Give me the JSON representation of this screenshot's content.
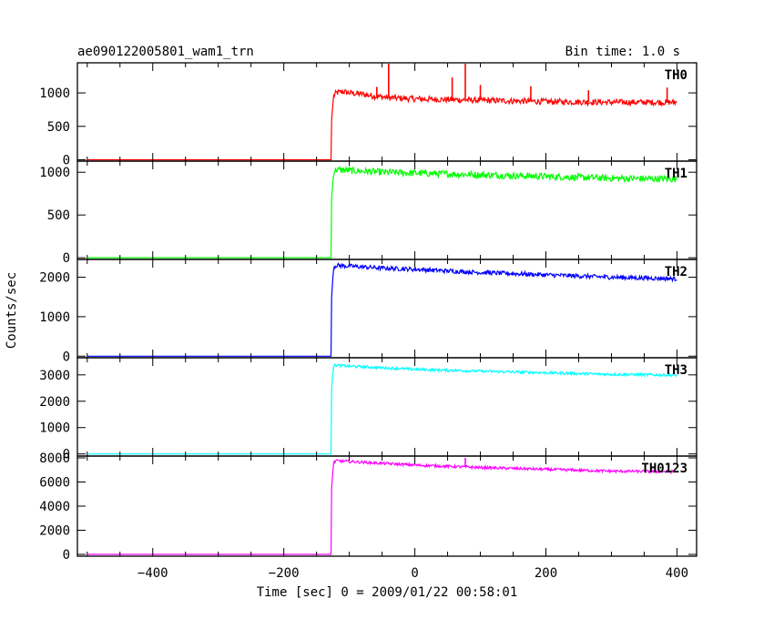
{
  "chart_data": {
    "type": "line",
    "title": "ae090122005801_wam1_trn",
    "subtitle": "Bin time: 1.0 s",
    "xlabel": "Time [sec] 0 = 2009/01/22 00:58:01",
    "ylabel": "Counts/sec",
    "xlim": [
      -515,
      430
    ],
    "xticks": [
      -400,
      -200,
      0,
      200,
      400
    ],
    "x_tick_labels": [
      "−400",
      "−200",
      "0",
      "200",
      "400"
    ],
    "series": [
      {
        "name": "TH0",
        "color": "#ff0000",
        "ylim": [
          -20,
          1450
        ],
        "yticks": [
          0,
          500,
          1000
        ],
        "x": [
          -500,
          -128,
          -127,
          -124,
          -120,
          -110,
          -100,
          -80,
          -60,
          -40,
          -20,
          0,
          50,
          100,
          150,
          200,
          250,
          300,
          350,
          400
        ],
        "values": [
          0,
          0,
          600,
          950,
          1000,
          1020,
          1000,
          980,
          950,
          930,
          920,
          910,
          900,
          890,
          880,
          870,
          865,
          860,
          860,
          860
        ],
        "spikes": [
          {
            "x": -40,
            "y": 1450
          },
          {
            "x": 77,
            "y": 1450
          },
          {
            "x": 57,
            "y": 1230
          },
          {
            "x": 100,
            "y": 1120
          },
          {
            "x": -58,
            "y": 1090
          },
          {
            "x": 177,
            "y": 1100
          },
          {
            "x": 265,
            "y": 1040
          },
          {
            "x": 385,
            "y": 1080
          }
        ],
        "noise": 45
      },
      {
        "name": "TH1",
        "color": "#00ff00",
        "ylim": [
          -20,
          1130
        ],
        "yticks": [
          0,
          500,
          1000
        ],
        "x": [
          -500,
          -128,
          -127,
          -124,
          -120,
          -100,
          -50,
          0,
          100,
          200,
          300,
          400
        ],
        "values": [
          0,
          0,
          700,
          1000,
          1030,
          1020,
          1000,
          990,
          970,
          950,
          930,
          920
        ],
        "noise": 40
      },
      {
        "name": "TH2",
        "color": "#0000ff",
        "ylim": [
          -40,
          2450
        ],
        "yticks": [
          0,
          1000,
          2000
        ],
        "x": [
          -500,
          -128,
          -127,
          -124,
          -120,
          -100,
          -50,
          0,
          100,
          200,
          300,
          400
        ],
        "values": [
          0,
          0,
          1500,
          2250,
          2300,
          2280,
          2230,
          2200,
          2120,
          2060,
          2000,
          1960
        ],
        "noise": 55
      },
      {
        "name": "TH3",
        "color": "#00ffff",
        "ylim": [
          -80,
          3650
        ],
        "yticks": [
          0,
          1000,
          2000,
          3000
        ],
        "x": [
          -500,
          -128,
          -127,
          -124,
          -120,
          -100,
          -50,
          0,
          100,
          200,
          300,
          400
        ],
        "values": [
          0,
          0,
          2500,
          3350,
          3370,
          3330,
          3270,
          3210,
          3140,
          3080,
          3020,
          2990
        ],
        "noise": 50
      },
      {
        "name": "TH0123",
        "color": "#ff00ff",
        "ylim": [
          -150,
          8150
        ],
        "yticks": [
          0,
          2000,
          4000,
          6000,
          8000
        ],
        "x": [
          -500,
          -128,
          -127,
          -124,
          -120,
          -100,
          -50,
          0,
          100,
          200,
          300,
          400
        ],
        "values": [
          0,
          0,
          5500,
          7600,
          7750,
          7700,
          7550,
          7400,
          7200,
          7050,
          6900,
          6850
        ],
        "spikes": [
          {
            "x": 77,
            "y": 8000
          }
        ],
        "noise": 110
      }
    ]
  }
}
